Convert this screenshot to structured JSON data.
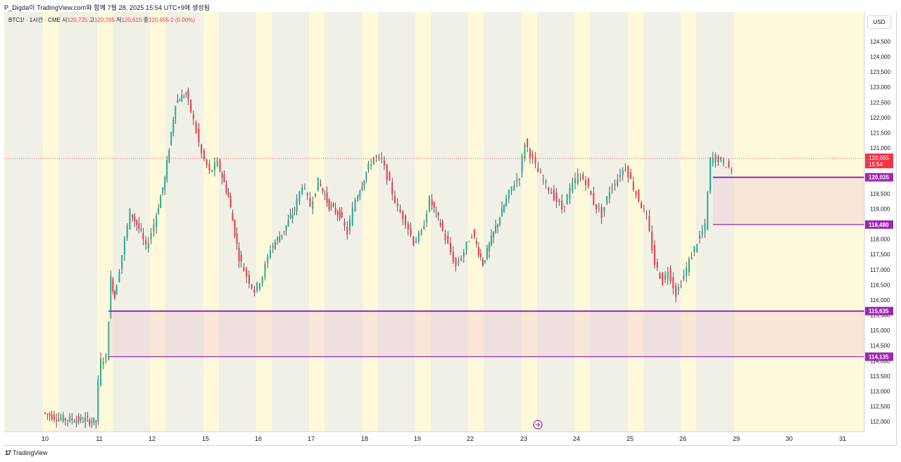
{
  "header": {
    "publisher_line": "P_Digda이 TradingView.com와 함께 7월 28, 2025 15:54 UTC+9에 생성됨"
  },
  "legend": {
    "symbol": "BTC1! · 1시간 · CME",
    "open_label": "시",
    "open": "120,725",
    "high_label": "고",
    "high": "120,785",
    "low_label": "저",
    "low": "120,615",
    "close_label": "종",
    "close": "120,655",
    "change": "0 (0.00%)"
  },
  "footer": {
    "brand": "TradingView",
    "logo_glyph": "17"
  },
  "axis": {
    "currency": "USD"
  },
  "colors": {
    "up": "#22ab94",
    "down": "#f23645",
    "zone_line": "#9c27b0",
    "price_label_bg": "#9c27b0",
    "last_price_bg": "#f23645",
    "session_tint_a": "#f0f0e6",
    "session_tint_b": "#fff9dc"
  },
  "chart_data": {
    "type": "candlestick",
    "symbol": "BTC1!",
    "interval": "1시간",
    "exchange": "CME",
    "currency": "USD",
    "ylim": [
      111900,
      125100
    ],
    "y_ticks": [
      "124,500",
      "124,000",
      "123,500",
      "123,000",
      "122,500",
      "122,000",
      "121,500",
      "121,000",
      "120,500",
      "120,000",
      "119,500",
      "119,000",
      "118,500",
      "118,000",
      "117,500",
      "117,000",
      "116,500",
      "116,000",
      "115,500",
      "115,000",
      "114,500",
      "114,000",
      "113,500",
      "113,000",
      "112,500",
      "112,000"
    ],
    "x_ticks": [
      "10",
      "11",
      "12",
      "15",
      "16",
      "17",
      "18",
      "19",
      "22",
      "23",
      "24",
      "25",
      "26",
      "29",
      "30",
      "31"
    ],
    "price_path": [
      [
        0.0,
        112300
      ],
      [
        0.3,
        112100
      ],
      [
        0.8,
        112050
      ],
      [
        1.0,
        112000
      ],
      [
        1.05,
        113300
      ],
      [
        1.1,
        114000
      ],
      [
        1.2,
        114100
      ],
      [
        1.28,
        116700
      ],
      [
        1.35,
        116100
      ],
      [
        1.5,
        117500
      ],
      [
        1.65,
        118900
      ],
      [
        1.85,
        118200
      ],
      [
        1.95,
        117700
      ],
      [
        2.1,
        118500
      ],
      [
        2.3,
        120000
      ],
      [
        2.5,
        122500
      ],
      [
        2.7,
        122800
      ],
      [
        2.85,
        121900
      ],
      [
        3.0,
        120800
      ],
      [
        3.15,
        120200
      ],
      [
        3.3,
        120500
      ],
      [
        3.5,
        119400
      ],
      [
        3.7,
        117400
      ],
      [
        3.85,
        116800
      ],
      [
        4.0,
        116300
      ],
      [
        4.15,
        116800
      ],
      [
        4.3,
        117700
      ],
      [
        4.55,
        118300
      ],
      [
        4.75,
        119000
      ],
      [
        4.9,
        119800
      ],
      [
        5.05,
        119100
      ],
      [
        5.2,
        119900
      ],
      [
        5.4,
        119100
      ],
      [
        5.6,
        118800
      ],
      [
        5.75,
        118200
      ],
      [
        5.9,
        119300
      ],
      [
        6.1,
        120200
      ],
      [
        6.25,
        120700
      ],
      [
        6.4,
        120600
      ],
      [
        6.55,
        119800
      ],
      [
        6.7,
        119000
      ],
      [
        6.85,
        118600
      ],
      [
        7.0,
        117900
      ],
      [
        7.15,
        118200
      ],
      [
        7.3,
        119300
      ],
      [
        7.5,
        118500
      ],
      [
        7.65,
        117800
      ],
      [
        7.8,
        117100
      ],
      [
        7.95,
        117600
      ],
      [
        8.1,
        118200
      ],
      [
        8.3,
        117200
      ],
      [
        8.5,
        118200
      ],
      [
        8.7,
        119100
      ],
      [
        8.85,
        119700
      ],
      [
        9.0,
        120100
      ],
      [
        9.1,
        121200
      ],
      [
        9.2,
        120800
      ],
      [
        9.35,
        120200
      ],
      [
        9.5,
        119800
      ],
      [
        9.65,
        119400
      ],
      [
        9.8,
        119000
      ],
      [
        9.95,
        119600
      ],
      [
        10.1,
        120100
      ],
      [
        10.25,
        119900
      ],
      [
        10.4,
        119200
      ],
      [
        10.55,
        118800
      ],
      [
        10.7,
        119600
      ],
      [
        10.85,
        120000
      ],
      [
        11.0,
        120400
      ],
      [
        11.15,
        119700
      ],
      [
        11.3,
        119100
      ],
      [
        11.4,
        118700
      ],
      [
        11.55,
        117200
      ],
      [
        11.7,
        116600
      ],
      [
        11.8,
        117000
      ],
      [
        11.95,
        116200
      ],
      [
        12.1,
        116800
      ],
      [
        12.25,
        117500
      ],
      [
        12.4,
        118100
      ],
      [
        12.5,
        118400
      ],
      [
        12.6,
        120600
      ],
      [
        12.7,
        120700
      ],
      [
        12.85,
        120500
      ],
      [
        13.0,
        120300
      ]
    ],
    "last_price": "120,655",
    "last_time": "15:54",
    "zones": [
      {
        "top": 120035,
        "bottom": 118480,
        "from_x": 12.6,
        "labels": [
          "120,035",
          "118,480"
        ]
      },
      {
        "top": 115635,
        "bottom": 114135,
        "from_x": 1.2,
        "labels": [
          "115,635",
          "114,135"
        ]
      }
    ]
  }
}
